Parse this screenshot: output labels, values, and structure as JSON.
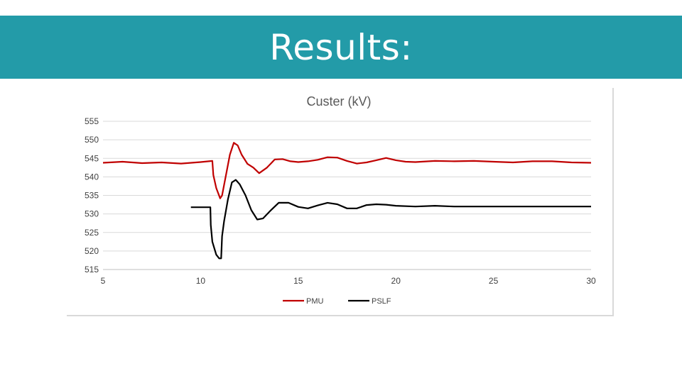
{
  "header": {
    "title": "Results:",
    "background": "#239ba8"
  },
  "chart_data": {
    "type": "line",
    "title": "Custer (kV)",
    "xlabel": "",
    "ylabel": "",
    "xlim": [
      5,
      30
    ],
    "ylim": [
      515,
      555
    ],
    "x_ticks": [
      5,
      10,
      15,
      20,
      25,
      30
    ],
    "y_ticks": [
      515,
      520,
      525,
      530,
      535,
      540,
      545,
      550,
      555
    ],
    "grid": "horizontal",
    "legend_position": "bottom",
    "series": [
      {
        "name": "PMU",
        "color": "#c00000",
        "x": [
          5,
          6,
          7,
          8,
          9,
          10,
          10.6,
          10.65,
          10.8,
          11.0,
          11.1,
          11.3,
          11.5,
          11.7,
          11.9,
          12.1,
          12.4,
          12.7,
          13.0,
          13.4,
          13.8,
          14.2,
          14.6,
          15.0,
          15.5,
          16.0,
          16.5,
          17.0,
          17.5,
          18.0,
          18.5,
          19.0,
          19.5,
          20.0,
          20.5,
          21.0,
          22.0,
          23.0,
          24.0,
          25.0,
          26.0,
          27.0,
          28.0,
          29.0,
          30.0
        ],
        "y": [
          543.8,
          544.1,
          543.7,
          543.9,
          543.6,
          544.0,
          544.3,
          540.5,
          537.0,
          534.2,
          535.0,
          540.5,
          546.0,
          549.2,
          548.5,
          546.0,
          543.5,
          542.5,
          541.0,
          542.5,
          544.7,
          544.8,
          544.2,
          544.0,
          544.2,
          544.6,
          545.3,
          545.2,
          544.3,
          543.6,
          543.9,
          544.5,
          545.1,
          544.5,
          544.1,
          544.0,
          544.3,
          544.2,
          544.3,
          544.1,
          543.9,
          544.2,
          544.2,
          543.9,
          543.8
        ]
      },
      {
        "name": "PSLF",
        "color": "#000000",
        "x": [
          9.5,
          10,
          10.5,
          10.52,
          10.6,
          10.8,
          10.95,
          11.05,
          11.1,
          11.2,
          11.4,
          11.6,
          11.8,
          12.0,
          12.3,
          12.6,
          12.9,
          13.2,
          13.6,
          14.0,
          14.5,
          15.0,
          15.5,
          16.0,
          16.5,
          17.0,
          17.5,
          18.0,
          18.5,
          19.0,
          19.5,
          20.0,
          21.0,
          22.0,
          23.0,
          24.0,
          25.0,
          26.0,
          27.0,
          28.0,
          29.0,
          30.0
        ],
        "y": [
          531.8,
          531.8,
          531.8,
          527.0,
          522.5,
          519.0,
          518.0,
          518.0,
          524.0,
          528.0,
          534.0,
          538.5,
          539.2,
          538.0,
          535.0,
          531.0,
          528.5,
          528.8,
          531.0,
          533.0,
          533.0,
          531.9,
          531.5,
          532.3,
          533.0,
          532.6,
          531.5,
          531.5,
          532.4,
          532.6,
          532.5,
          532.2,
          532.0,
          532.2,
          532.0,
          532.0,
          532.0,
          532.0,
          532.0,
          532.0,
          532.0,
          532.0
        ]
      }
    ]
  }
}
